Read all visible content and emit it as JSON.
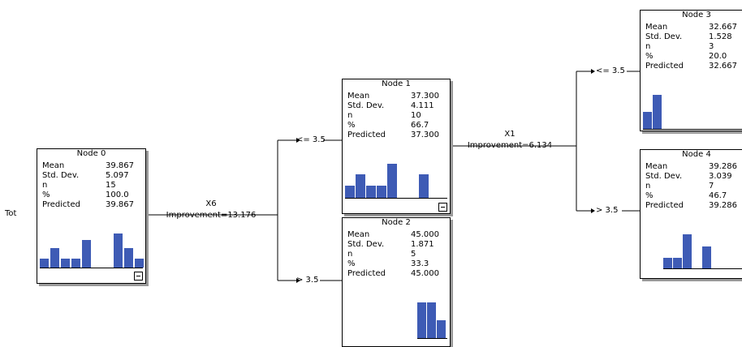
{
  "root_label": "Tot",
  "stat_labels": {
    "mean": "Mean",
    "std": "Std. Dev.",
    "n": "n",
    "pct": "%",
    "pred": "Predicted"
  },
  "splits": [
    {
      "variable": "X6",
      "improvement": "Improvement=13.176"
    },
    {
      "variable": "X1",
      "improvement": "Improvement=6.134"
    }
  ],
  "branches": {
    "b1": "<= 3.5",
    "b2": "> 3.5",
    "b3": "<= 3.5",
    "b4": "> 3.5"
  },
  "nodes": [
    {
      "title": "Node 0",
      "mean": "39.867",
      "std": "5.097",
      "n": "15",
      "pct": "100.0",
      "pred": "39.867",
      "hist": [
        0.26,
        0.56,
        0.26,
        0.26,
        0.82,
        0,
        0,
        1.0,
        0.56,
        0.26
      ]
    },
    {
      "title": "Node 1",
      "mean": "37.300",
      "std": "4.111",
      "n": "10",
      "pct": "66.7",
      "pred": "37.300",
      "hist": [
        0.36,
        0.7,
        0.36,
        0.36,
        1.0,
        0,
        0,
        0.7
      ]
    },
    {
      "title": "Node 2",
      "mean": "45.000",
      "std": "1.871",
      "n": "5",
      "pct": "33.3",
      "pred": "45.000",
      "hist": [
        1.0,
        1.0,
        0.5
      ]
    },
    {
      "title": "Node 3",
      "mean": "32.667",
      "std": "1.528",
      "n": "3",
      "pct": "20.0",
      "pred": "32.667",
      "hist": [
        0.5,
        1.0
      ]
    },
    {
      "title": "Node 4",
      "mean": "39.286",
      "std": "3.039",
      "n": "7",
      "pct": "46.7",
      "pred": "39.286",
      "hist": [
        0.3,
        0.3,
        1.0,
        0,
        0.65
      ]
    }
  ]
}
